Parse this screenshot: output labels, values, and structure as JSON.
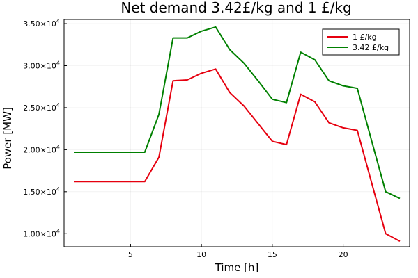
{
  "chart_data": {
    "type": "line",
    "title": "Net demand 3.42£/kg and 1 £/kg",
    "xlabel": "Time [h]",
    "ylabel": "Power [MW]",
    "xlim": [
      0.31,
      24.69
    ],
    "ylim": [
      8450,
      35500
    ],
    "grid": true,
    "legend_position": "top-right",
    "x_ticks": [
      {
        "value": 5,
        "label": "5"
      },
      {
        "value": 10,
        "label": "10"
      },
      {
        "value": 15,
        "label": "15"
      },
      {
        "value": 20,
        "label": "20"
      }
    ],
    "y_ticks": [
      {
        "value": 10000,
        "mantissa": "1.00×10",
        "exp": "4"
      },
      {
        "value": 15000,
        "mantissa": "1.50×10",
        "exp": "4"
      },
      {
        "value": 20000,
        "mantissa": "2.00×10",
        "exp": "4"
      },
      {
        "value": 25000,
        "mantissa": "2.50×10",
        "exp": "4"
      },
      {
        "value": 30000,
        "mantissa": "3.00×10",
        "exp": "4"
      },
      {
        "value": 35000,
        "mantissa": "3.50×10",
        "exp": "4"
      }
    ],
    "x": [
      1,
      2,
      3,
      4,
      5,
      6,
      7,
      8,
      9,
      10,
      11,
      12,
      13,
      14,
      15,
      16,
      17,
      18,
      19,
      20,
      21,
      22,
      23,
      24
    ],
    "series": [
      {
        "name": "1 £/kg",
        "color": "#e6000f",
        "values": [
          16200,
          16200,
          16200,
          16200,
          16200,
          16200,
          19100,
          28200,
          28300,
          29100,
          29600,
          26800,
          25200,
          23100,
          21000,
          20600,
          26600,
          25700,
          23200,
          22600,
          22300,
          16100,
          10000,
          9100
        ]
      },
      {
        "name": "3.42 £/kg",
        "color": "#008000",
        "values": [
          19700,
          19700,
          19700,
          19700,
          19700,
          19700,
          24200,
          33300,
          33300,
          34100,
          34600,
          31900,
          30300,
          28200,
          26000,
          25600,
          31600,
          30700,
          28200,
          27600,
          27300,
          21100,
          15000,
          14200
        ]
      }
    ]
  }
}
